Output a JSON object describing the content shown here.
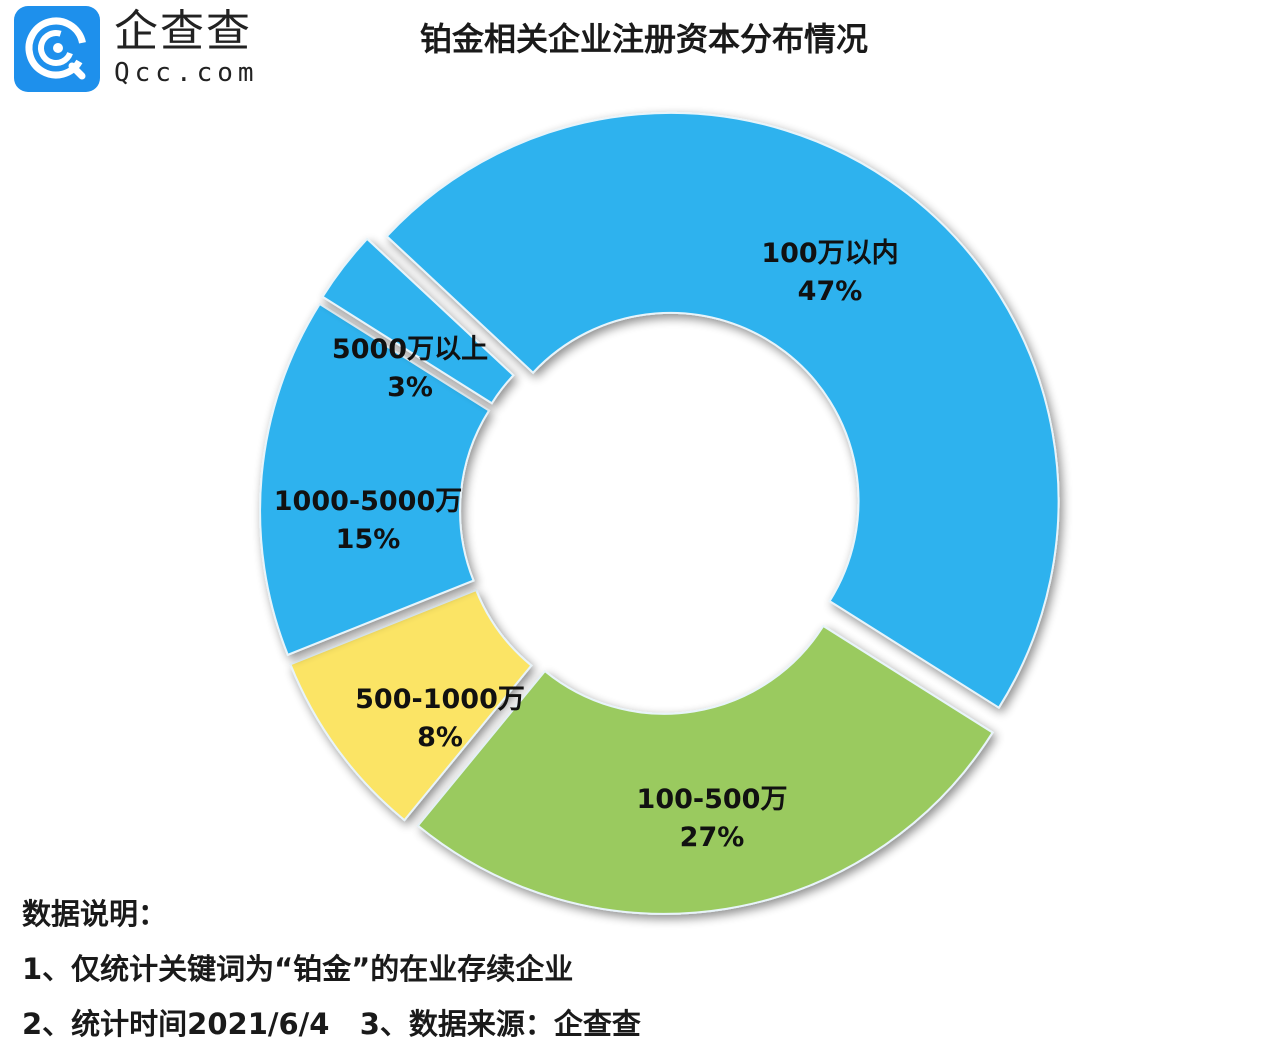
{
  "logo": {
    "name_cn": "企查查",
    "name_en": "Qcc.com",
    "icon": "qcc-logo-icon",
    "color": "#1e90ec"
  },
  "chart_data": {
    "type": "pie",
    "subtype": "donut",
    "title": "铂金相关企业注册资本分布情况",
    "categories": [
      "100万以内",
      "100-500万",
      "500-1000万",
      "1000-5000万",
      "5000万以上"
    ],
    "values": [
      47,
      27,
      8,
      15,
      3
    ],
    "unit": "%",
    "labels": [
      "100万以内\n47%",
      "100-500万\n27%",
      "500-1000万\n8%",
      "1000-5000万\n15%",
      "5000万以上\n3%"
    ],
    "colors": [
      "#2eb2ee",
      "#9aca5e",
      "#fbe465",
      "#2eb2ee",
      "#2eb2ee"
    ],
    "exploded": true,
    "legend": "none"
  },
  "notes": {
    "heading": "数据说明：",
    "line1": "1、仅统计关键词为“铂金”的在业存续企业",
    "line2": "2、统计时间2021/6/4   3、数据来源：企查查"
  }
}
